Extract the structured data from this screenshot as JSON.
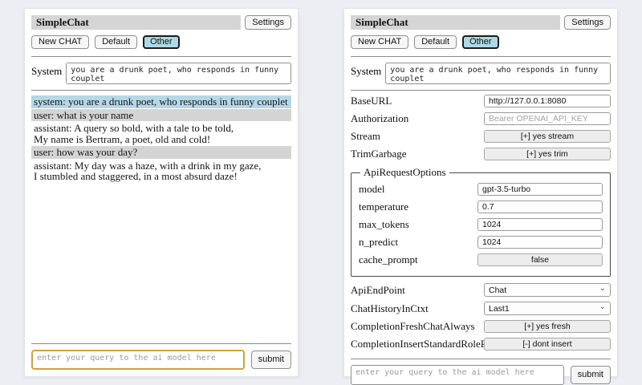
{
  "left": {
    "title": "SimpleChat",
    "settings_button": "Settings",
    "toolbar": {
      "new_chat": "New CHAT",
      "default": "Default",
      "other": "Other"
    },
    "system_label": "System",
    "system_value": "you are a drunk poet, who responds in funny couplet",
    "messages": [
      {
        "role": "system",
        "text": "system: you are a drunk poet, who responds in funny couplet"
      },
      {
        "role": "user",
        "text": "user: what is your name"
      },
      {
        "role": "assistant",
        "text": "assistant: A query so bold, with a tale to be told,\nMy name is Bertram, a poet, old and cold!"
      },
      {
        "role": "user",
        "text": "user: how was your day?"
      },
      {
        "role": "assistant",
        "text": "assistant: My day was a haze, with a drink in my gaze,\nI stumbled and staggered, in a most absurd daze!"
      }
    ],
    "query_placeholder": "enter your query to the ai model here",
    "submit_label": "submit"
  },
  "right": {
    "title": "SimpleChat",
    "settings_button": "Settings",
    "toolbar": {
      "new_chat": "New CHAT",
      "default": "Default",
      "other": "Other"
    },
    "system_label": "System",
    "system_value": "you are a drunk poet, who responds in funny couplet",
    "settings": {
      "base_url": {
        "label": "BaseURL",
        "value": "http://127.0.0.1:8080"
      },
      "authorization": {
        "label": "Authorization",
        "placeholder": "Bearer OPENAI_API_KEY"
      },
      "stream": {
        "label": "Stream",
        "button": "[+] yes stream"
      },
      "trim_garbage": {
        "label": "TrimGarbage",
        "button": "[+] yes trim"
      },
      "api_request_options": {
        "legend": "ApiRequestOptions",
        "model": {
          "label": "model",
          "value": "gpt-3.5-turbo"
        },
        "temperature": {
          "label": "temperature",
          "value": "0.7"
        },
        "max_tokens": {
          "label": "max_tokens",
          "value": "1024"
        },
        "n_predict": {
          "label": "n_predict",
          "value": "1024"
        },
        "cache_prompt": {
          "label": "cache_prompt",
          "button": "false"
        }
      },
      "api_endpoint": {
        "label": "ApiEndPoint",
        "value": "Chat"
      },
      "chat_history_in_ctxt": {
        "label": "ChatHistoryInCtxt",
        "value": "Last1"
      },
      "completion_fresh": {
        "label": "CompletionFreshChatAlways",
        "button": "[+] yes fresh"
      },
      "completion_insert": {
        "label": "CompletionInsertStandardRolePrefix",
        "button": "[-] dont insert"
      }
    },
    "query_placeholder": "enter your query to the ai model here",
    "submit_label": "submit"
  },
  "colors": {
    "accent_selected": "#add8e6",
    "system_msg_bg": "#b5d7e6",
    "user_msg_bg": "#d4d4d4",
    "focus_border": "#d2a13e"
  }
}
